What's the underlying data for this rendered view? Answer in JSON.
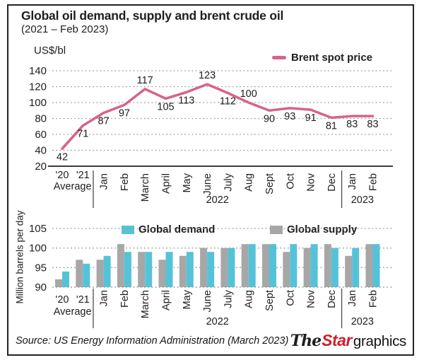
{
  "title": "Global oil demand, supply and brent crude oil",
  "subtitle": "(2021 – Feb 2023)",
  "x_axis": {
    "tick_labels": [
      "'20",
      "'21",
      "Jan",
      "Feb",
      "March",
      "April",
      "May",
      "June",
      "July",
      "Aug",
      "Sept",
      "Oct",
      "Nov",
      "Dec",
      "Jan",
      "Feb"
    ],
    "horizontal_count": 2,
    "group_labels": [
      {
        "text": "Average",
        "from": 0,
        "to": 1
      },
      {
        "text": "2022",
        "from": 2,
        "to": 13
      },
      {
        "text": "2023",
        "from": 14,
        "to": 15
      }
    ],
    "dividers_after": [
      1,
      13
    ]
  },
  "chart_data": [
    {
      "type": "line",
      "unit_label": "US$/bl",
      "legend_label": "Brent spot price",
      "line_color": "#d6648a",
      "categories": [
        "'20 Average",
        "'21 Average",
        "Jan 2022",
        "Feb 2022",
        "March 2022",
        "April 2022",
        "May 2022",
        "June 2022",
        "July 2022",
        "Aug 2022",
        "Sept 2022",
        "Oct 2022",
        "Nov 2022",
        "Dec 2022",
        "Jan 2023",
        "Feb 2023"
      ],
      "values": [
        42,
        71,
        87,
        97,
        117,
        105,
        113,
        123,
        112,
        100,
        90,
        93,
        91,
        81,
        83,
        83
      ],
      "label_side": [
        "below",
        "below",
        "below",
        "below",
        "above",
        "below",
        "below",
        "above",
        "below",
        "above",
        "below",
        "below",
        "below",
        "below",
        "below",
        "below"
      ],
      "ylim": [
        20,
        140
      ],
      "yticks": [
        140,
        120,
        100,
        80,
        60,
        40,
        20
      ],
      "grid": "dotted",
      "legend_position": "top-right"
    },
    {
      "type": "bar",
      "ylabel": "Million barrels per day",
      "categories": [
        "'20 Average",
        "'21 Average",
        "Jan 2022",
        "Feb 2022",
        "March 2022",
        "April 2022",
        "May 2022",
        "June 2022",
        "July 2022",
        "Aug 2022",
        "Sept 2022",
        "Oct 2022",
        "Nov 2022",
        "Dec 2022",
        "Jan 2023",
        "Feb 2023"
      ],
      "series": [
        {
          "name": "Global supply",
          "color": "#a7a7a7",
          "values": [
            92,
            97,
            97,
            101,
            99,
            97,
            98,
            100,
            100,
            101,
            101,
            99,
            100,
            101,
            98,
            101
          ]
        },
        {
          "name": "Global demand",
          "color": "#55c3d7",
          "values": [
            94,
            96,
            98,
            99,
            99,
            99,
            99,
            99,
            100,
            101,
            101,
            101,
            101,
            100,
            100,
            101
          ]
        }
      ],
      "legend": [
        {
          "label": "Global demand",
          "color": "#55c3d7"
        },
        {
          "label": "Global supply",
          "color": "#a7a7a7"
        }
      ],
      "ylim": [
        90,
        105
      ],
      "yticks": [
        105,
        100,
        95,
        90
      ],
      "grid": "dotted",
      "legend_position": "top-inside"
    }
  ],
  "footer": {
    "source": "Source: US Energy Information Administration (March 2023)",
    "logo": {
      "the": "The",
      "star": "Star",
      "graphics": "graphics",
      "star_color": "#ce1f2d"
    }
  }
}
